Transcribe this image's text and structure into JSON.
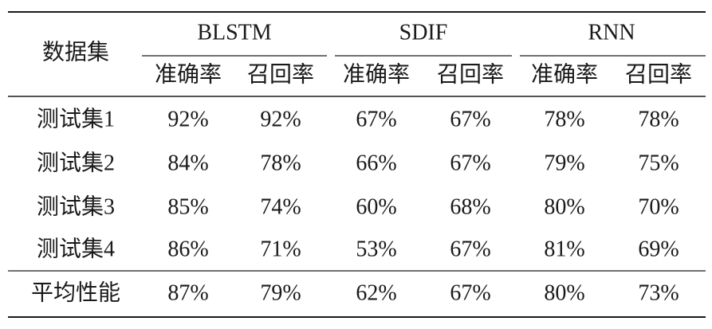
{
  "table": {
    "row_header": "数据集",
    "groups": [
      "BLSTM",
      "SDIF",
      "RNN"
    ],
    "subheaders": [
      "准确率",
      "召回率",
      "准确率",
      "召回率",
      "准确率",
      "召回率"
    ],
    "rows": [
      [
        "测试集1",
        "92%",
        "92%",
        "67%",
        "67%",
        "78%",
        "78%"
      ],
      [
        "测试集2",
        "84%",
        "78%",
        "66%",
        "67%",
        "79%",
        "75%"
      ],
      [
        "测试集3",
        "85%",
        "74%",
        "60%",
        "68%",
        "80%",
        "70%"
      ],
      [
        "测试集4",
        "86%",
        "71%",
        "53%",
        "67%",
        "81%",
        "69%"
      ],
      [
        "平均性能",
        "87%",
        "79%",
        "62%",
        "67%",
        "80%",
        "73%"
      ]
    ]
  }
}
